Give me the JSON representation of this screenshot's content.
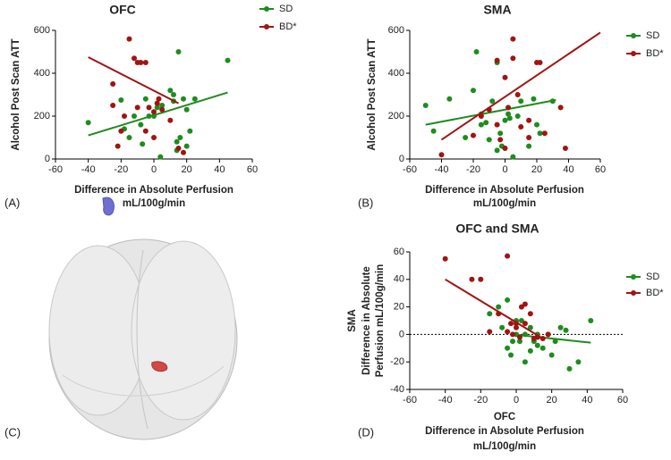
{
  "chart_data": [
    {
      "type": "scatter",
      "panel": "(A)",
      "title": "OFC",
      "xlabel": [
        "Difference in Absolute Perfusion",
        "mL/100g/min"
      ],
      "ylabel": [
        "Alcohol Post Scan ATT"
      ],
      "xlim": [
        -60,
        60
      ],
      "xticks": [
        -60,
        -40,
        -20,
        0,
        20,
        40,
        60
      ],
      "ylim": [
        0,
        600
      ],
      "yticks": [
        0,
        200,
        400,
        600
      ],
      "zero_line": false,
      "series": [
        {
          "name": "SD",
          "color": "#1e8c1e",
          "x": [
            -40,
            -20,
            -18,
            -15,
            -12,
            -8,
            -5,
            -3,
            0,
            2,
            4,
            5,
            10,
            12,
            14,
            15,
            16,
            18,
            20,
            22,
            25,
            -7,
            14,
            12,
            45,
            20
          ],
          "values": [
            170,
            275,
            140,
            100,
            200,
            160,
            280,
            200,
            200,
            240,
            10,
            250,
            320,
            300,
            80,
            500,
            100,
            280,
            230,
            130,
            280,
            70,
            40,
            270,
            460,
            60
          ],
          "trend": {
            "x": [
              -40,
              45
            ],
            "y": [
              110,
              310
            ]
          }
        },
        {
          "name": "BD*",
          "color": "#a01414",
          "x": [
            -25,
            -20,
            -15,
            -12,
            -10,
            -8,
            -5,
            -3,
            0,
            2,
            5,
            10,
            15,
            -22,
            -10,
            -5,
            0,
            18,
            -18,
            3,
            -25
          ],
          "values": [
            350,
            130,
            560,
            470,
            450,
            450,
            450,
            240,
            220,
            260,
            230,
            180,
            50,
            60,
            240,
            130,
            100,
            30,
            200,
            280,
            250
          ],
          "trend": {
            "x": [
              -40,
              15
            ],
            "y": [
              475,
              260
            ]
          }
        }
      ]
    },
    {
      "type": "scatter",
      "panel": "(B)",
      "title": "SMA",
      "xlabel": [
        "Difference in Absolute Perfusion",
        "mL/100g/min"
      ],
      "ylabel": [
        "Alcohol Post Scan ATT"
      ],
      "xlim": [
        -60,
        60
      ],
      "xticks": [
        -60,
        -40,
        -20,
        0,
        20,
        40,
        60
      ],
      "ylim": [
        0,
        600
      ],
      "yticks": [
        0,
        200,
        400,
        600
      ],
      "zero_line": false,
      "series": [
        {
          "name": "SD",
          "color": "#1e8c1e",
          "x": [
            -50,
            -45,
            -35,
            -25,
            -20,
            -18,
            -15,
            -12,
            -10,
            -8,
            -5,
            -3,
            -2,
            0,
            2,
            5,
            8,
            10,
            15,
            18,
            20,
            22,
            30,
            -15,
            -5,
            3
          ],
          "values": [
            250,
            130,
            280,
            100,
            320,
            500,
            160,
            170,
            90,
            270,
            450,
            120,
            60,
            180,
            210,
            10,
            200,
            270,
            60,
            280,
            160,
            120,
            270,
            210,
            40,
            190
          ],
          "trend": {
            "x": [
              -50,
              32
            ],
            "y": [
              160,
              275
            ]
          }
        },
        {
          "name": "BD*",
          "color": "#a01414",
          "x": [
            -40,
            -20,
            -15,
            -10,
            -5,
            -5,
            0,
            2,
            5,
            5,
            8,
            10,
            15,
            20,
            22,
            25,
            35,
            38,
            -3,
            0,
            15
          ],
          "values": [
            20,
            110,
            200,
            230,
            460,
            160,
            380,
            240,
            560,
            470,
            300,
            150,
            180,
            450,
            450,
            120,
            240,
            50,
            90,
            50,
            100
          ],
          "trend": {
            "x": [
              -40,
              60
            ],
            "y": [
              90,
              590
            ]
          }
        }
      ]
    },
    {
      "type": "scatter",
      "panel": "(D)",
      "title": "OFC and SMA",
      "xlabel": [
        "OFC",
        "Difference in Absolute Perfusion",
        "mL/100g/min"
      ],
      "ylabel": [
        "SMA",
        "Difference in Absolute",
        "Perfusion mL/100g/min"
      ],
      "xlim": [
        -60,
        60
      ],
      "xticks": [
        -60,
        -40,
        -20,
        0,
        20,
        40,
        60
      ],
      "ylim": [
        -40,
        60
      ],
      "yticks": [
        -40,
        -20,
        0,
        20,
        40,
        60
      ],
      "zero_line": true,
      "series": [
        {
          "name": "SD",
          "color": "#1e8c1e",
          "x": [
            -10,
            -8,
            -5,
            -5,
            -3,
            0,
            0,
            2,
            3,
            5,
            8,
            10,
            12,
            15,
            18,
            20,
            22,
            25,
            28,
            30,
            35,
            42,
            -2,
            5,
            12,
            8,
            -15
          ],
          "values": [
            20,
            5,
            25,
            -10,
            -15,
            0,
            10,
            -5,
            10,
            -20,
            5,
            -5,
            -8,
            -10,
            0,
            -15,
            -5,
            5,
            3,
            -25,
            -20,
            10,
            -5,
            0,
            0,
            -12,
            15
          ],
          "trend": {
            "x": [
              -2,
              42
            ],
            "y": [
              0,
              -6
            ]
          }
        },
        {
          "name": "BD*",
          "color": "#a01414",
          "x": [
            -40,
            -25,
            -20,
            -15,
            -10,
            -5,
            -5,
            -3,
            0,
            0,
            2,
            3,
            5,
            8,
            10,
            12,
            15,
            18,
            -2,
            5
          ],
          "values": [
            55,
            40,
            40,
            2,
            15,
            57,
            2,
            8,
            8,
            5,
            -2,
            20,
            22,
            15,
            -3,
            -2,
            -3,
            0,
            0,
            8
          ],
          "trend": {
            "x": [
              -40,
              15
            ],
            "y": [
              40,
              -3
            ]
          }
        }
      ]
    }
  ],
  "image_panel": {
    "label": "(C)"
  }
}
